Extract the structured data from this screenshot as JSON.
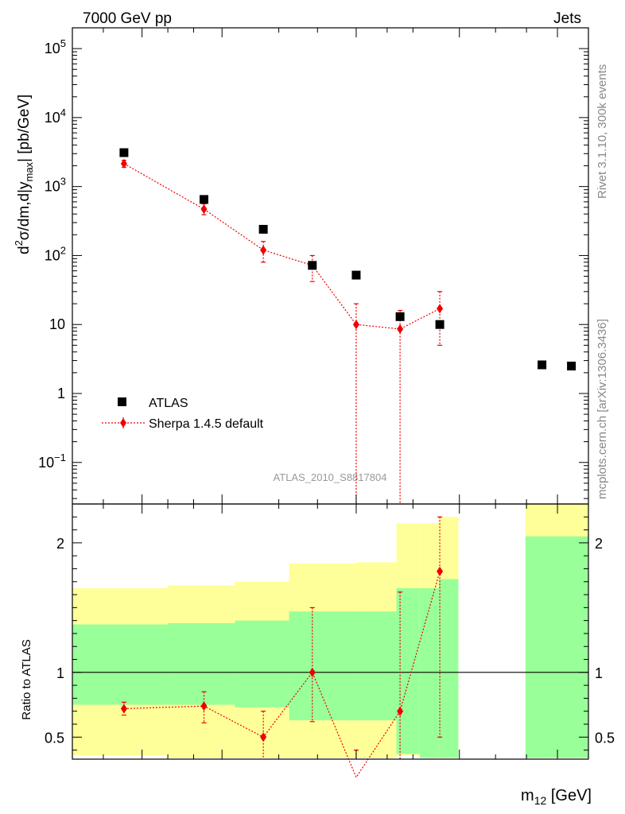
{
  "header": {
    "left": "7000 GeV pp",
    "right": "Jets"
  },
  "side_labels": {
    "rivet": "Rivet 3.1.10,  300k events",
    "mcplots": "mcplots.cern.ch [arXiv:1306.3436]"
  },
  "analysis_id": "ATLAS_2010_S8817804",
  "axis_labels": {
    "main_y_prefix": "d",
    "main_y_sup": "2",
    "main_y_body": "σ/dm,d|y",
    "main_y_sub": "max",
    "main_y_suffix": "| [pb/GeV]",
    "ratio_y": "Ratio to ATLAS",
    "x_main": "m",
    "x_sub": "12",
    "x_unit": " [GeV]"
  },
  "main_ticks": {
    "pow": [
      {
        "base": "10",
        "exp": "5",
        "value": 100000
      },
      {
        "base": "10",
        "exp": "4",
        "value": 10000
      },
      {
        "base": "10",
        "exp": "3",
        "value": 1000
      },
      {
        "base": "10",
        "exp": "2",
        "value": 100
      },
      {
        "base": "10",
        "exp": "−1",
        "value": 0.1
      }
    ],
    "plain": [
      {
        "label": "10",
        "value": 10
      },
      {
        "label": "1",
        "value": 1
      }
    ]
  },
  "ratio_ticks": [
    {
      "label": "2",
      "value": 2
    },
    {
      "label": "1",
      "value": 1
    },
    {
      "label": "0.5",
      "value": 0.5
    }
  ],
  "legend": {
    "atlas": "ATLAS",
    "sherpa": "Sherpa 1.4.5 default"
  },
  "colors": {
    "data": "#000000",
    "mc": "#ee0000",
    "band_inner": "#99ff99",
    "band_outer": "#ffff99"
  },
  "chart_data": {
    "type": "scatter",
    "title": "7000 GeV pp  Jets",
    "xlabel": "m12 [GeV]",
    "ylabel": "d2σ/dm,d|ymax| [pb/GeV]",
    "xlim": [
      0,
      1
    ],
    "ylim_log": [
      0.025,
      200000
    ],
    "ratio_ylim": [
      0.33,
      2.3
    ],
    "x": [
      0.1,
      0.255,
      0.37,
      0.465,
      0.55,
      0.635,
      0.712,
      0.91,
      0.967
    ],
    "series": [
      {
        "name": "ATLAS",
        "values": [
          3100,
          650,
          240,
          72,
          52,
          13,
          10,
          2.6,
          2.5
        ]
      },
      {
        "name": "Sherpa 1.4.5 default",
        "x": [
          0.1,
          0.255,
          0.37,
          0.465,
          0.55,
          0.635,
          0.712
        ],
        "values": [
          2150,
          470,
          120,
          72,
          10,
          8.6,
          17
        ],
        "err_up": [
          2400,
          560,
          160,
          100,
          20,
          16,
          30
        ],
        "err_down": [
          1900,
          390,
          80,
          42,
          0.01,
          0.01,
          5
        ]
      }
    ],
    "ratio": {
      "x": [
        0.1,
        0.255,
        0.37,
        0.465,
        0.55,
        0.635,
        0.712
      ],
      "values": [
        0.72,
        0.74,
        0.5,
        1.0,
        0.19,
        0.7,
        1.78
      ],
      "err_up": [
        0.77,
        0.85,
        0.7,
        1.5,
        0.4,
        1.62,
        2.2
      ],
      "err_down": [
        0.67,
        0.61,
        0.3,
        0.62,
        0.05,
        0.05,
        0.5
      ]
    },
    "bands": [
      {
        "x0": 0.0,
        "x1": 0.185,
        "inner_lo": 0.75,
        "inner_hi": 1.37,
        "outer_lo": 0.36,
        "outer_hi": 1.65
      },
      {
        "x0": 0.185,
        "x1": 0.315,
        "inner_lo": 0.75,
        "inner_hi": 1.38,
        "outer_lo": 0.34,
        "outer_hi": 1.67
      },
      {
        "x0": 0.315,
        "x1": 0.42,
        "inner_lo": 0.73,
        "inner_hi": 1.4,
        "outer_lo": 0.34,
        "outer_hi": 1.7
      },
      {
        "x0": 0.42,
        "x1": 0.55,
        "inner_lo": 0.63,
        "inner_hi": 1.47,
        "outer_lo": 0.34,
        "outer_hi": 1.84
      },
      {
        "x0": 0.55,
        "x1": 0.628,
        "inner_lo": 0.63,
        "inner_hi": 1.47,
        "outer_lo": 0.34,
        "outer_hi": 1.85
      },
      {
        "x0": 0.628,
        "x1": 0.673,
        "inner_lo": 0.37,
        "inner_hi": 1.65,
        "outer_lo": 0.36,
        "outer_hi": 2.15
      },
      {
        "x0": 0.673,
        "x1": 0.71,
        "inner_lo": 0.34,
        "inner_hi": 1.65,
        "outer_lo": 0.34,
        "outer_hi": 2.15
      },
      {
        "x0": 0.71,
        "x1": 0.748,
        "inner_lo": 0.34,
        "inner_hi": 1.72,
        "outer_lo": 0.34,
        "outer_hi": 2.2
      },
      {
        "x0": 0.878,
        "x1": 1.0,
        "inner_lo": 0.34,
        "inner_hi": 2.05,
        "outer_lo": 0.34,
        "outer_hi": 2.3
      }
    ]
  }
}
